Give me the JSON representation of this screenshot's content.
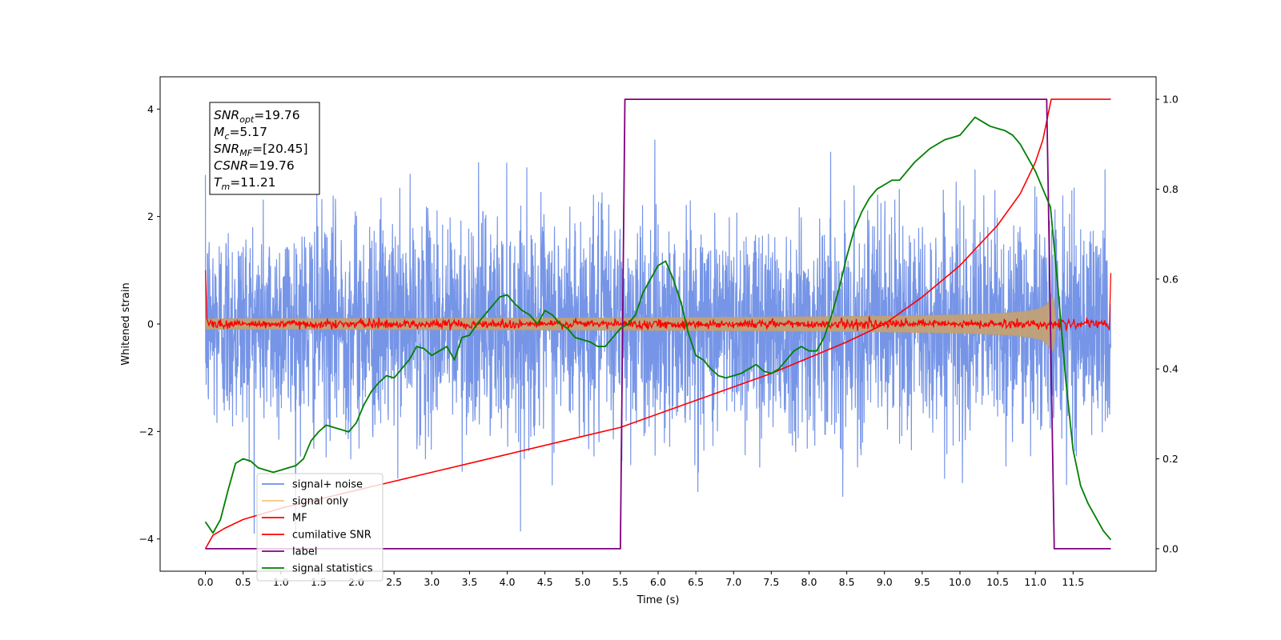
{
  "chart_data": {
    "type": "line",
    "xlabel": "Time (s)",
    "ylabel": "Whitened strain",
    "xlim": [
      -0.6,
      12.6
    ],
    "ylim": [
      -4.6,
      4.6
    ],
    "ylim_right": [
      -0.05,
      1.05
    ],
    "grid": false,
    "legend_position": "lower-left",
    "x_ticks": [
      "0.0",
      "0.5",
      "1.0",
      "1.5",
      "2.0",
      "2.5",
      "3.0",
      "3.5",
      "4.0",
      "4.5",
      "5.0",
      "5.5",
      "6.0",
      "6.5",
      "7.0",
      "7.5",
      "8.0",
      "8.5",
      "9.0",
      "9.5",
      "10.0",
      "10.5",
      "11.0",
      "11.5"
    ],
    "y_ticks_left": [
      "4",
      "2",
      "0",
      "−2",
      "−4"
    ],
    "y_ticks_right": [
      "1.0",
      "0.8",
      "0.6",
      "0.4",
      "0.2",
      "0.0"
    ],
    "annotation": [
      {
        "main": "SNR",
        "sub": "opt",
        "value": "=19.76"
      },
      {
        "main": "M",
        "sub": "c",
        "value": "=5.17"
      },
      {
        "main": "SNR",
        "sub": "MF",
        "value": "=[20.45]"
      },
      {
        "main": "CSNR",
        "sub": "",
        "value": "=19.76"
      },
      {
        "main": "T",
        "sub": "m",
        "value": "=11.21"
      }
    ],
    "series": [
      {
        "name": "signal+ noise",
        "axis": "left",
        "color": "#6f8fe6",
        "kind": "noise",
        "amplitude_sigma": 1.0,
        "x_range": [
          0,
          12
        ]
      },
      {
        "name": "signal only",
        "axis": "left",
        "color": "#f5b760",
        "kind": "chirp_envelope",
        "start_amplitude": 0.1,
        "peak_amplitude": 1.1,
        "merger_time": 11.21,
        "x_range": [
          0,
          11.3
        ]
      },
      {
        "name": "MF",
        "axis": "left",
        "color": "#ff0000",
        "kind": "noise",
        "amplitude_sigma": 0.04,
        "edge_values": [
          1.0,
          0.95
        ],
        "x_range": [
          0,
          12
        ]
      },
      {
        "name": "cumilative SNR",
        "axis": "right",
        "color": "#ff0000",
        "x": [
          0,
          0.1,
          0.25,
          0.5,
          1.0,
          1.5,
          2.0,
          2.5,
          3.0,
          3.5,
          4.0,
          4.5,
          5.0,
          5.5,
          6.0,
          6.5,
          7.0,
          7.5,
          8.0,
          8.5,
          9.0,
          9.5,
          10.0,
          10.5,
          10.8,
          11.0,
          11.1,
          11.21,
          12.0
        ],
        "values": [
          0.0,
          0.03,
          0.045,
          0.065,
          0.09,
          0.11,
          0.13,
          0.15,
          0.17,
          0.19,
          0.21,
          0.23,
          0.25,
          0.27,
          0.3,
          0.33,
          0.36,
          0.39,
          0.425,
          0.46,
          0.5,
          0.56,
          0.63,
          0.72,
          0.79,
          0.86,
          0.91,
          1.0,
          1.0
        ]
      },
      {
        "name": "label",
        "axis": "right",
        "color": "#800080",
        "x": [
          0,
          5.5,
          5.56,
          11.15,
          11.25,
          12.0
        ],
        "values": [
          0,
          0,
          1,
          1,
          0,
          0
        ]
      },
      {
        "name": "signal statistics",
        "axis": "right",
        "color": "#008000",
        "x": [
          0,
          0.1,
          0.2,
          0.3,
          0.4,
          0.5,
          0.6,
          0.7,
          0.8,
          0.9,
          1.0,
          1.1,
          1.2,
          1.3,
          1.4,
          1.5,
          1.6,
          1.7,
          1.8,
          1.9,
          2.0,
          2.1,
          2.2,
          2.3,
          2.4,
          2.5,
          2.6,
          2.7,
          2.8,
          2.9,
          3.0,
          3.1,
          3.2,
          3.3,
          3.4,
          3.5,
          3.6,
          3.7,
          3.8,
          3.9,
          4.0,
          4.1,
          4.2,
          4.3,
          4.4,
          4.5,
          4.6,
          4.7,
          4.8,
          4.9,
          5.0,
          5.1,
          5.2,
          5.3,
          5.4,
          5.5,
          5.6,
          5.7,
          5.8,
          5.9,
          6.0,
          6.1,
          6.2,
          6.3,
          6.4,
          6.5,
          6.6,
          6.7,
          6.8,
          6.9,
          7.0,
          7.1,
          7.2,
          7.3,
          7.4,
          7.5,
          7.6,
          7.7,
          7.8,
          7.9,
          8.0,
          8.1,
          8.2,
          8.3,
          8.4,
          8.5,
          8.6,
          8.7,
          8.8,
          8.9,
          9.0,
          9.1,
          9.2,
          9.3,
          9.4,
          9.5,
          9.6,
          9.7,
          9.8,
          9.9,
          10.0,
          10.1,
          10.2,
          10.3,
          10.4,
          10.5,
          10.6,
          10.7,
          10.8,
          10.9,
          11.0,
          11.1,
          11.2,
          11.3,
          11.4,
          11.5,
          11.6,
          11.7,
          11.8,
          11.9,
          12.0
        ],
        "values": [
          0.06,
          0.035,
          0.065,
          0.13,
          0.19,
          0.2,
          0.195,
          0.18,
          0.175,
          0.17,
          0.175,
          0.18,
          0.185,
          0.2,
          0.24,
          0.26,
          0.275,
          0.27,
          0.265,
          0.26,
          0.28,
          0.32,
          0.35,
          0.37,
          0.385,
          0.38,
          0.4,
          0.42,
          0.45,
          0.445,
          0.43,
          0.44,
          0.45,
          0.42,
          0.47,
          0.475,
          0.5,
          0.52,
          0.54,
          0.56,
          0.565,
          0.545,
          0.53,
          0.52,
          0.5,
          0.53,
          0.52,
          0.5,
          0.49,
          0.47,
          0.465,
          0.46,
          0.45,
          0.45,
          0.47,
          0.49,
          0.5,
          0.52,
          0.57,
          0.6,
          0.63,
          0.64,
          0.6,
          0.55,
          0.48,
          0.43,
          0.42,
          0.4,
          0.385,
          0.38,
          0.385,
          0.39,
          0.4,
          0.41,
          0.395,
          0.39,
          0.4,
          0.42,
          0.44,
          0.45,
          0.44,
          0.44,
          0.47,
          0.52,
          0.58,
          0.65,
          0.71,
          0.75,
          0.78,
          0.8,
          0.81,
          0.82,
          0.82,
          0.84,
          0.86,
          0.875,
          0.89,
          0.9,
          0.91,
          0.915,
          0.92,
          0.94,
          0.96,
          0.95,
          0.94,
          0.935,
          0.93,
          0.92,
          0.9,
          0.87,
          0.84,
          0.8,
          0.76,
          0.58,
          0.38,
          0.22,
          0.14,
          0.1,
          0.07,
          0.04,
          0.02
        ]
      }
    ]
  }
}
